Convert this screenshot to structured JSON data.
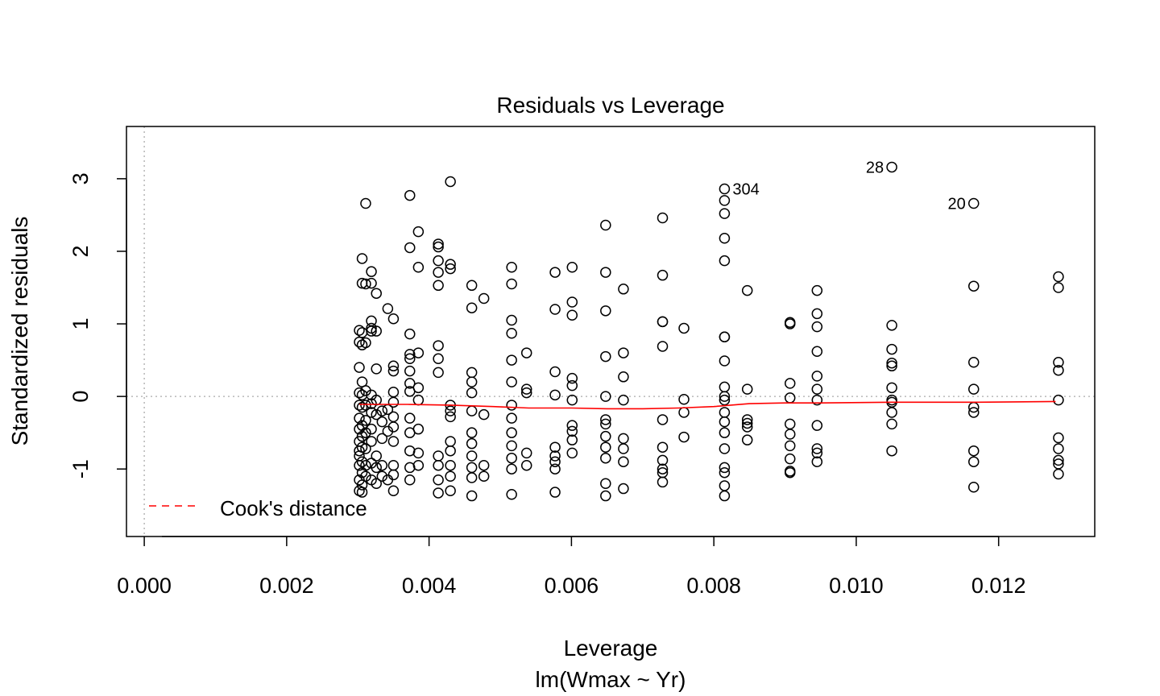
{
  "chart_data": {
    "type": "scatter",
    "title": "Residuals vs Leverage",
    "xlabel": "Leverage",
    "sublabel": "lm(Wmax ~ Yr)",
    "ylabel": "Standardized residuals",
    "xlim": [
      -0.00025,
      0.01335
    ],
    "ylim": [
      -1.93,
      3.72
    ],
    "xticks": [
      0,
      0.002,
      0.004,
      0.006,
      0.008,
      0.01,
      0.012
    ],
    "xtick_labels": [
      "0.000",
      "0.002",
      "0.004",
      "0.006",
      "0.008",
      "0.010",
      "0.012"
    ],
    "yticks": [
      -1,
      0,
      1,
      2,
      3
    ],
    "ytick_labels": [
      "-1",
      "0",
      "1",
      "2",
      "3"
    ],
    "grid": false,
    "reference_lines": {
      "h": 0,
      "v": 0,
      "color": "#aaaaaa",
      "style": "dotted"
    },
    "legend": {
      "position": "bottom-left",
      "entries": [
        {
          "label": "Cook's distance",
          "color": "#ff0000",
          "style": "dashed"
        }
      ]
    },
    "smoother_color": "#ff0000",
    "labeled_points": [
      {
        "label": "28",
        "x": 0.0105,
        "y": 3.16,
        "side": "left"
      },
      {
        "label": "20",
        "x": 0.01165,
        "y": 2.66,
        "side": "left"
      },
      {
        "label": "304",
        "x": 0.00815,
        "y": 2.86,
        "side": "right"
      }
    ],
    "smoother": {
      "x": [
        0.00302,
        0.0037,
        0.0043,
        0.0049,
        0.0054,
        0.006,
        0.0065,
        0.007,
        0.0075,
        0.008,
        0.0085,
        0.009,
        0.0095,
        0.0105,
        0.0117,
        0.0128
      ],
      "y": [
        -0.11,
        -0.11,
        -0.12,
        -0.14,
        -0.16,
        -0.16,
        -0.17,
        -0.17,
        -0.16,
        -0.14,
        -0.1,
        -0.09,
        -0.09,
        -0.08,
        -0.08,
        -0.07
      ]
    },
    "columns": [
      {
        "x": 0.00302,
        "y": [
          0.91,
          0.75,
          0.4,
          0.05,
          -0.12,
          -0.3,
          -0.45,
          -0.62,
          -0.75,
          -0.82,
          -0.95,
          -1.15,
          -1.3
        ]
      },
      {
        "x": 0.00306,
        "y": [
          1.9,
          1.56,
          0.88,
          0.71,
          0.2,
          0.02,
          -0.15,
          -0.4,
          -0.55,
          -0.7,
          -0.9,
          -1.05,
          -1.22,
          -1.32
        ]
      },
      {
        "x": 0.00311,
        "y": [
          2.66,
          1.55,
          0.74,
          0.08,
          -0.12,
          -0.33,
          -0.5,
          -0.72,
          -0.95,
          -1.1
        ]
      },
      {
        "x": 0.00319,
        "y": [
          1.72,
          1.56,
          1.04,
          0.94,
          0.9,
          0.02,
          -0.1,
          -0.22,
          -0.45,
          -0.62,
          -0.92,
          -1.15
        ]
      },
      {
        "x": 0.00326,
        "y": [
          1.42,
          0.9,
          0.38,
          -0.05,
          -0.25,
          -0.82,
          -0.98,
          -1.2
        ]
      },
      {
        "x": 0.00334,
        "y": [
          -0.2,
          -0.35,
          -0.58,
          -0.95,
          -1.1
        ]
      },
      {
        "x": 0.00342,
        "y": [
          1.21,
          -0.18,
          -0.48,
          -1.15
        ]
      },
      {
        "x": 0.0035,
        "y": [
          1.07,
          0.42,
          0.35,
          0.06,
          -0.08,
          -0.28,
          -0.42,
          -0.62,
          -0.95,
          -1.08,
          -1.3
        ]
      },
      {
        "x": 0.00373,
        "y": [
          2.77,
          2.05,
          0.86,
          0.58,
          0.52,
          0.35,
          0.18,
          0.07,
          -0.3,
          -0.5,
          -0.75,
          -0.98,
          -1.15
        ]
      },
      {
        "x": 0.00385,
        "y": [
          2.27,
          1.78,
          0.6,
          0.12,
          -0.05,
          -0.45,
          -0.78,
          -0.95
        ]
      },
      {
        "x": 0.00413,
        "y": [
          2.1,
          2.06,
          1.87,
          1.71,
          1.53,
          0.7,
          0.52,
          0.33,
          -0.82,
          -0.95,
          -1.15,
          -1.33
        ]
      },
      {
        "x": 0.0043,
        "y": [
          2.96,
          1.82,
          1.76,
          -0.12,
          -0.2,
          -0.28,
          -0.62,
          -0.75,
          -0.95,
          -1.1,
          -1.3
        ]
      },
      {
        "x": 0.0046,
        "y": [
          1.53,
          1.22,
          0.33,
          0.2,
          0.05,
          -0.2,
          -0.5,
          -0.65,
          -0.82,
          -0.98,
          -1.12,
          -1.37
        ]
      },
      {
        "x": 0.00477,
        "y": [
          1.35,
          -0.25,
          -0.95,
          -1.1
        ]
      },
      {
        "x": 0.00516,
        "y": [
          1.78,
          1.55,
          1.05,
          0.87,
          0.5,
          0.2,
          -0.12,
          -0.3,
          -0.5,
          -0.68,
          -0.85,
          -1.0,
          -1.35
        ]
      },
      {
        "x": 0.00537,
        "y": [
          0.6,
          0.1,
          0.05,
          -0.78,
          -0.95
        ]
      },
      {
        "x": 0.00577,
        "y": [
          1.71,
          1.2,
          0.34,
          0.02,
          -0.7,
          -0.82,
          -0.9,
          -1.0,
          -1.32
        ]
      },
      {
        "x": 0.00601,
        "y": [
          1.78,
          1.3,
          1.12,
          0.25,
          0.15,
          -0.05,
          -0.4,
          -0.48,
          -0.6,
          -0.78
        ]
      },
      {
        "x": 0.00648,
        "y": [
          2.36,
          1.71,
          1.18,
          0.55,
          0.0,
          -0.32,
          -0.38,
          -0.55,
          -0.7,
          -0.85,
          -1.2,
          -1.37
        ]
      },
      {
        "x": 0.00673,
        "y": [
          1.48,
          0.6,
          0.27,
          -0.05,
          -0.58,
          -0.72,
          -0.9,
          -1.27
        ]
      },
      {
        "x": 0.00728,
        "y": [
          2.46,
          1.67,
          1.03,
          1.03,
          0.69,
          -0.32,
          -0.7,
          -0.88,
          -1.0,
          -1.05,
          -1.18
        ]
      },
      {
        "x": 0.00758,
        "y": [
          0.94,
          -0.04,
          -0.22,
          -0.56
        ]
      },
      {
        "x": 0.00815,
        "y": [
          2.86,
          2.7,
          2.52,
          2.18,
          1.87,
          0.82,
          0.82,
          0.49,
          0.13,
          0.0,
          -0.05,
          -0.22,
          -0.35,
          -0.5,
          -0.72,
          -0.98,
          -1.05,
          -1.23,
          -1.37
        ]
      },
      {
        "x": 0.00847,
        "y": [
          1.46,
          0.1,
          -0.32,
          -0.37,
          -0.42,
          -0.6
        ]
      },
      {
        "x": 0.00907,
        "y": [
          1.02,
          1.0,
          0.18,
          -0.02,
          -0.38,
          -0.52,
          -0.68,
          -0.86,
          -1.03,
          -1.05
        ]
      },
      {
        "x": 0.00945,
        "y": [
          1.46,
          1.14,
          0.96,
          0.62,
          0.28,
          0.1,
          -0.05,
          -0.4,
          -0.72,
          -0.78,
          -0.9
        ]
      },
      {
        "x": 0.0105,
        "y": [
          3.16,
          0.98,
          0.65,
          0.46,
          0.42,
          0.12,
          -0.05,
          -0.08,
          -0.22,
          -0.38,
          -0.75
        ]
      },
      {
        "x": 0.01165,
        "y": [
          2.66,
          1.52,
          0.47,
          0.1,
          -0.15,
          -0.22,
          -0.75,
          -0.9,
          -1.25
        ]
      },
      {
        "x": 0.01284,
        "y": [
          1.65,
          1.5,
          0.47,
          0.36,
          -0.05,
          -0.57,
          -0.72,
          -0.88,
          -0.93,
          -1.07
        ]
      }
    ]
  }
}
